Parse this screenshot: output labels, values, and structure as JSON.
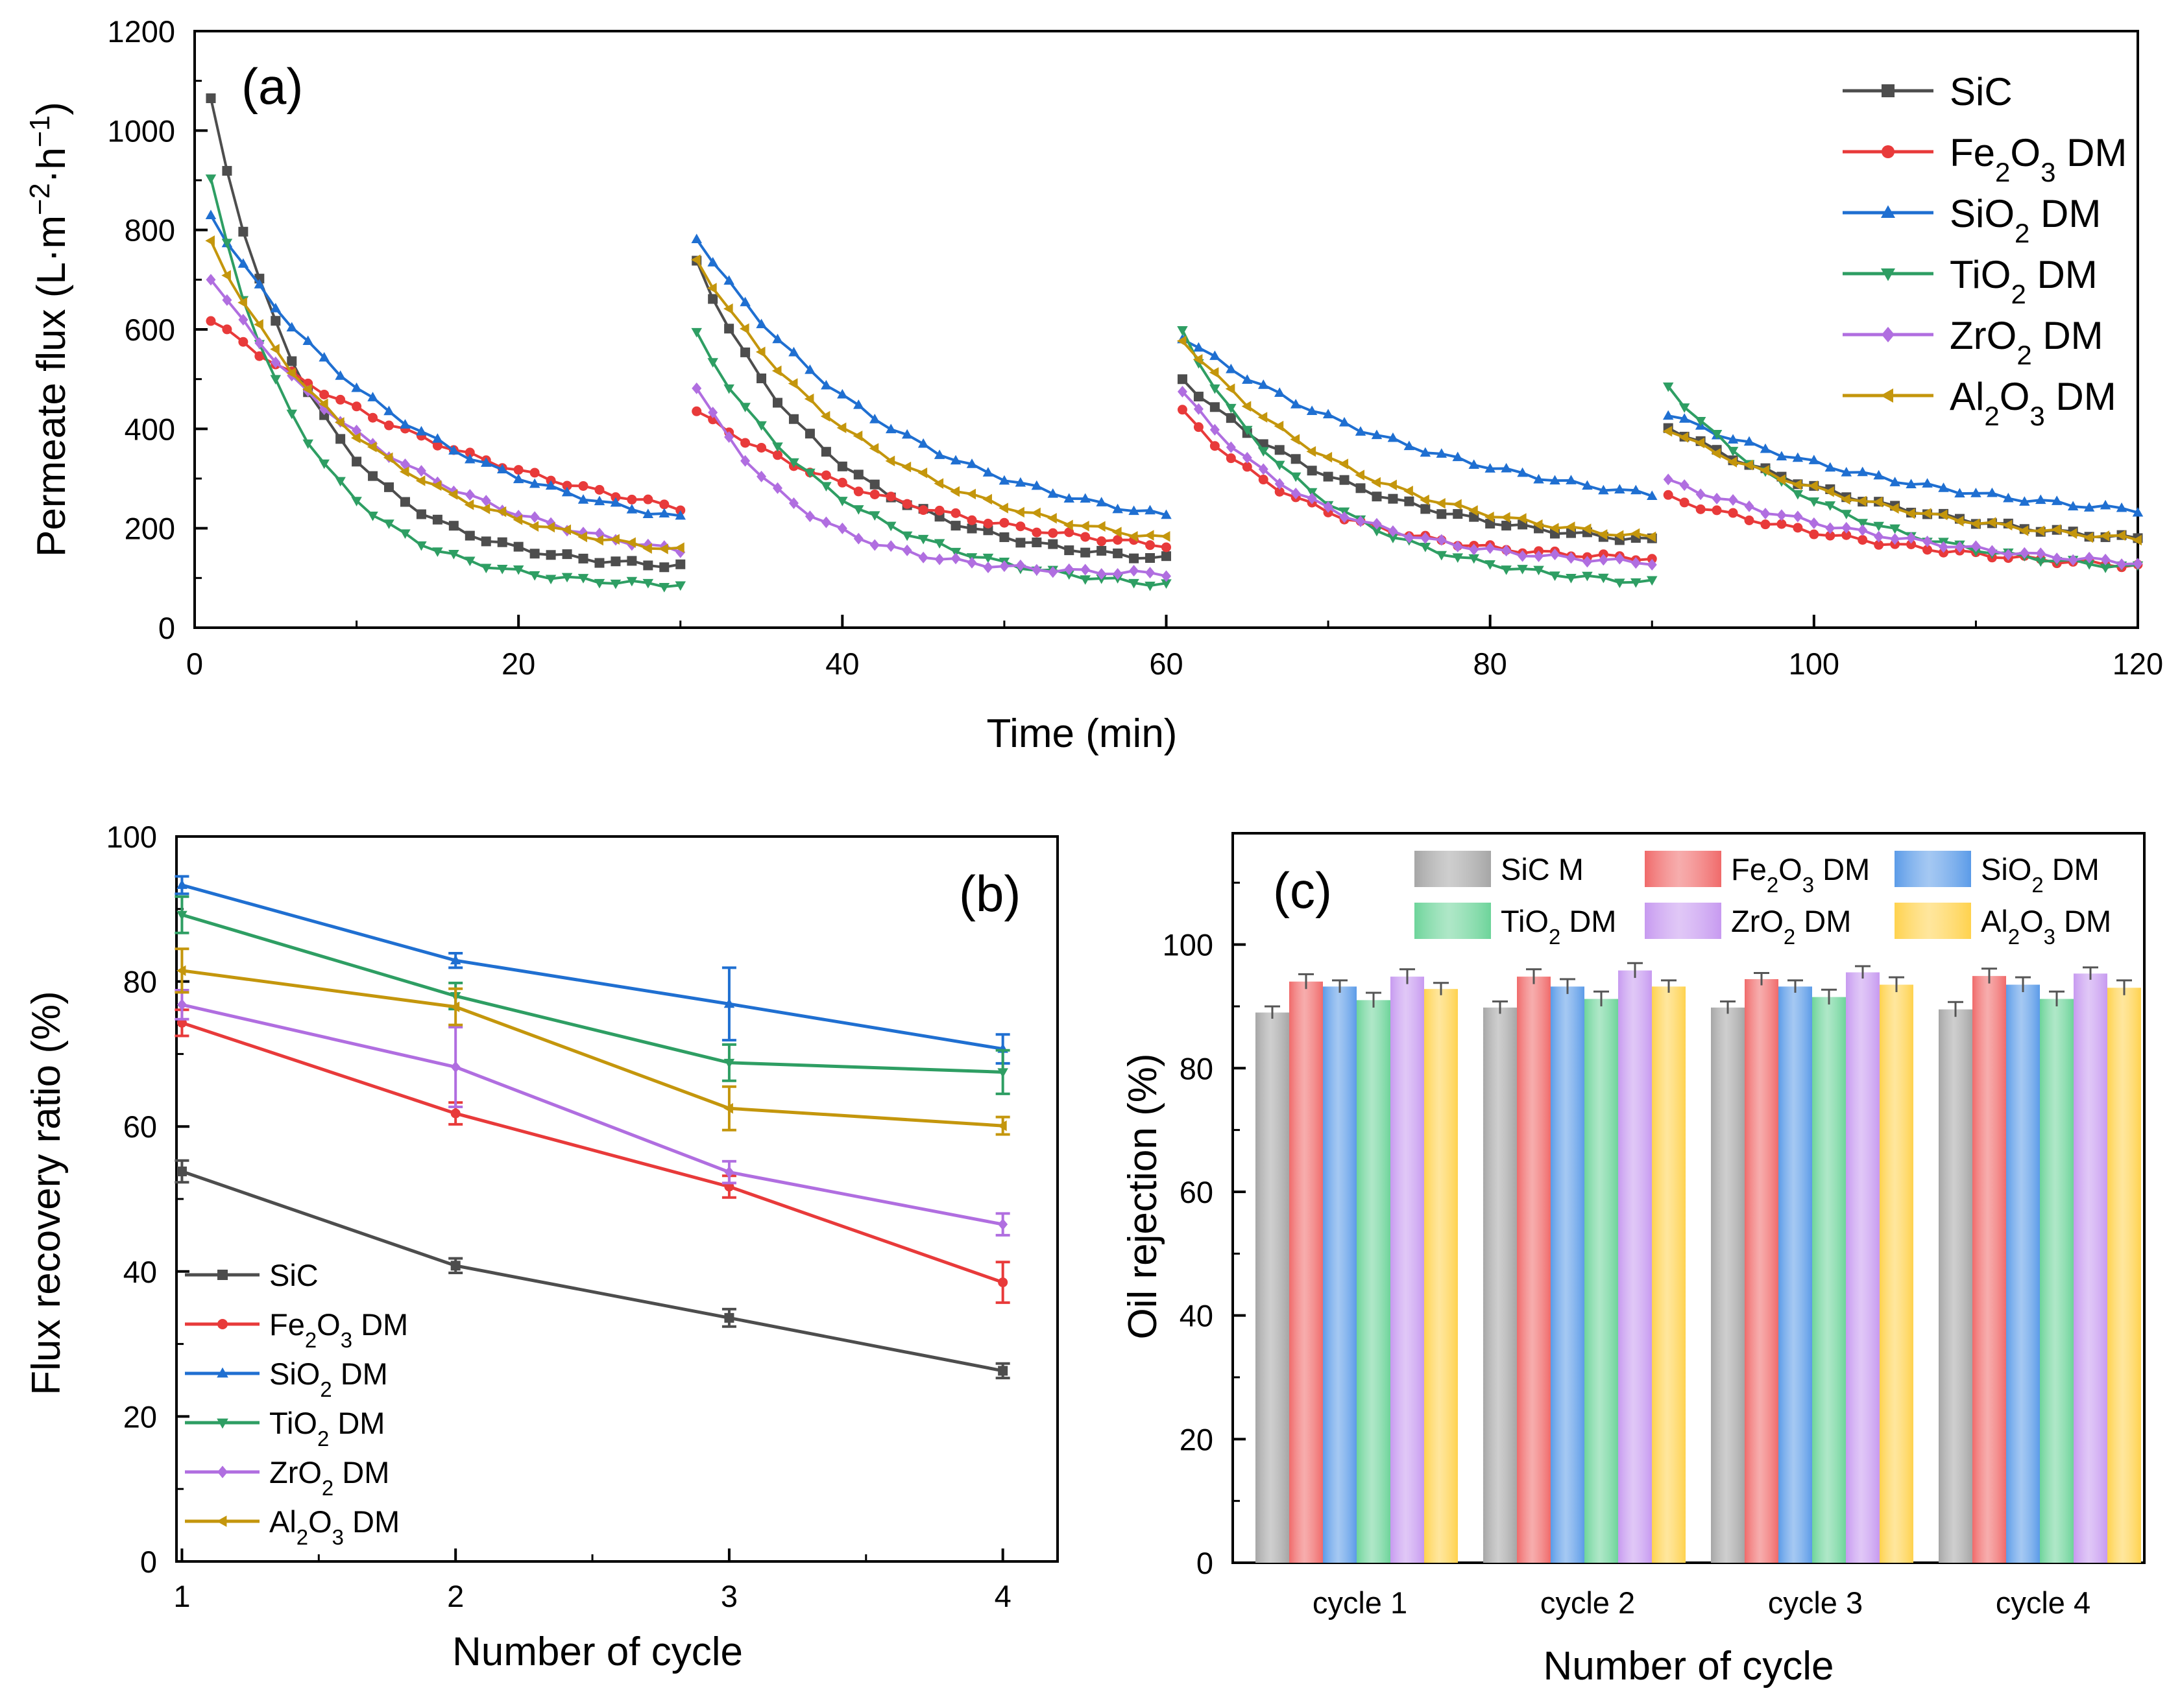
{
  "chart_data": [
    {
      "panel": "(a)",
      "type": "line",
      "xlabel": "Time (min)",
      "ylabel_parts": [
        "Permeate flux (L·m",
        "−2",
        "·h",
        "−1",
        ")"
      ],
      "xlim": [
        0,
        120
      ],
      "ylim": [
        0,
        1200
      ],
      "xticks": [
        "0",
        "20",
        "40",
        "60",
        "80",
        "100",
        "120"
      ],
      "yticks": [
        "0",
        "200",
        "400",
        "600",
        "800",
        "1000",
        "1200"
      ],
      "legend_position": "top-right",
      "grid": false,
      "segments": [
        [
          1,
          30
        ],
        [
          31,
          60
        ],
        [
          61,
          90
        ],
        [
          91,
          120
        ]
      ],
      "series": [
        {
          "name": "SiC",
          "label": [
            "SiC"
          ],
          "color": "#4d4d4d",
          "marker": "square",
          "curves": [
            [
              1060,
              45,
              0.16,
              115
            ],
            [
              735,
              10,
              0.12,
              120
            ],
            [
              500,
              25,
              0.09,
              150
            ],
            [
              405,
              20,
              0.07,
              145
            ]
          ]
        },
        {
          "name": "Fe2O3 DM",
          "label": [
            "Fe",
            "2",
            "O",
            "3",
            " DM"
          ],
          "color": "#e83a3a",
          "marker": "circle",
          "curves": [
            [
              620,
              12,
              0.05,
              125
            ],
            [
              435,
              12,
              0.07,
              125
            ],
            [
              435,
              20,
              0.12,
              130
            ],
            [
              262,
              12,
              0.06,
              95
            ]
          ]
        },
        {
          "name": "SiO2 DM",
          "label": [
            "SiO",
            "2",
            " DM"
          ],
          "color": "#1f6fd1",
          "marker": "triangle-up",
          "curves": [
            [
              830,
              5,
              0.08,
              155
            ],
            [
              785,
              10,
              0.08,
              165
            ],
            [
              585,
              10,
              0.06,
              200
            ],
            [
              430,
              20,
              0.06,
              195
            ]
          ]
        },
        {
          "name": "TiO2 DM",
          "label": [
            "TiO",
            "2",
            " DM"
          ],
          "color": "#2e9e63",
          "marker": "triangle-down",
          "curves": [
            [
              900,
              40,
              0.17,
              80
            ],
            [
              590,
              40,
              0.11,
              65
            ],
            [
              595,
              10,
              0.12,
              75
            ],
            [
              485,
              15,
              0.1,
              100
            ]
          ]
        },
        {
          "name": "ZrO2 DM",
          "label": [
            "ZrO",
            "2",
            " DM"
          ],
          "color": "#b06ee0",
          "marker": "diamond",
          "curves": [
            [
              705,
              5,
              0.08,
              95
            ],
            [
              485,
              10,
              0.16,
              105
            ],
            [
              475,
              10,
              0.12,
              120
            ],
            [
              295,
              10,
              0.06,
              95
            ]
          ]
        },
        {
          "name": "Al2O3 DM",
          "label": [
            "Al",
            "2",
            "O",
            "3",
            " DM"
          ],
          "color": "#c4960c",
          "marker": "triangle-left",
          "curves": [
            [
              775,
              10,
              0.1,
              120
            ],
            [
              740,
              10,
              0.09,
              135
            ],
            [
              580,
              10,
              0.09,
              150
            ],
            [
              400,
              10,
              0.07,
              145
            ]
          ]
        }
      ]
    },
    {
      "panel": "(b)",
      "type": "line",
      "xlabel": "Number of cycle",
      "ylabel": "Flux recovery ratio (%)",
      "xlim": [
        0.98,
        4.2
      ],
      "ylim": [
        0,
        100
      ],
      "x": [
        1,
        2,
        3,
        4
      ],
      "xticks": [
        "1",
        "2",
        "3",
        "4"
      ],
      "yticks": [
        "0",
        "20",
        "40",
        "60",
        "80",
        "100"
      ],
      "legend_position": "bottom-left",
      "grid": false,
      "series": [
        {
          "name": "SiC",
          "label": [
            "SiC"
          ],
          "color": "#4d4d4d",
          "marker": "square",
          "values": [
            53.8,
            40.8,
            33.6,
            26.3
          ],
          "errors": [
            1.5,
            1.0,
            1.2,
            1.0
          ]
        },
        {
          "name": "Fe2O3 DM",
          "label": [
            "Fe",
            "2",
            "O",
            "3",
            " DM"
          ],
          "color": "#e83a3a",
          "marker": "circle",
          "values": [
            74.3,
            61.8,
            51.7,
            38.5
          ],
          "errors": [
            1.8,
            1.5,
            1.5,
            2.8
          ]
        },
        {
          "name": "SiO2 DM",
          "label": [
            "SiO",
            "2",
            " DM"
          ],
          "color": "#1f6fd1",
          "marker": "triangle-up",
          "values": [
            93.3,
            82.9,
            76.9,
            70.7
          ],
          "errors": [
            1.2,
            1.0,
            5.0,
            2.0
          ]
        },
        {
          "name": "TiO2 DM",
          "label": [
            "TiO",
            "2",
            " DM"
          ],
          "color": "#2e9e63",
          "marker": "triangle-down",
          "values": [
            89.2,
            78.0,
            68.8,
            67.5
          ],
          "errors": [
            2.5,
            1.8,
            2.5,
            3.0
          ]
        },
        {
          "name": "ZrO2 DM",
          "label": [
            "ZrO",
            "2",
            " DM"
          ],
          "color": "#b06ee0",
          "marker": "diamond",
          "values": [
            76.8,
            68.2,
            53.7,
            46.5
          ],
          "errors": [
            2.0,
            5.5,
            1.5,
            1.5
          ]
        },
        {
          "name": "Al2O3 DM",
          "label": [
            "Al",
            "2",
            "O",
            "3",
            " DM"
          ],
          "color": "#c4960c",
          "marker": "triangle-left",
          "values": [
            81.5,
            76.5,
            62.5,
            60.1
          ],
          "errors": [
            3.0,
            2.5,
            3.0,
            1.2
          ]
        }
      ]
    },
    {
      "panel": "(c)",
      "type": "bar",
      "xlabel": "Number of cycle",
      "ylabel": "Oil rejection (%)",
      "ylim": [
        0,
        118
      ],
      "categories": [
        "cycle 1",
        "cycle 2",
        "cycle 3",
        "cycle 4"
      ],
      "yticks": [
        "0",
        "20",
        "40",
        "60",
        "80",
        "100"
      ],
      "legend_position": "top",
      "grid": false,
      "series": [
        {
          "name": "SiC M",
          "label": [
            "SiC M"
          ],
          "color": "#a6a6a6",
          "values": [
            89.0,
            89.8,
            89.8,
            89.5
          ],
          "errors": [
            1.0,
            1.0,
            1.0,
            1.2
          ]
        },
        {
          "name": "Fe2O3 DM",
          "label": [
            "Fe",
            "2",
            "O",
            "3",
            " DM"
          ],
          "color": "#f06a6a",
          "values": [
            94.0,
            94.8,
            94.4,
            94.9
          ],
          "errors": [
            1.2,
            1.2,
            1.0,
            1.2
          ]
        },
        {
          "name": "SiO2 DM",
          "label": [
            "SiO",
            "2",
            " DM"
          ],
          "color": "#5b9be8",
          "values": [
            93.2,
            93.2,
            93.2,
            93.5
          ],
          "errors": [
            1.0,
            1.2,
            1.0,
            1.2
          ]
        },
        {
          "name": "TiO2 DM",
          "label": [
            "TiO",
            "2",
            " DM"
          ],
          "color": "#6dd49a",
          "values": [
            91.0,
            91.2,
            91.5,
            91.2
          ],
          "errors": [
            1.2,
            1.2,
            1.2,
            1.2
          ]
        },
        {
          "name": "ZrO2 DM",
          "label": [
            "ZrO",
            "2",
            " DM"
          ],
          "color": "#c79af0",
          "values": [
            94.8,
            95.8,
            95.5,
            95.3
          ],
          "errors": [
            1.2,
            1.2,
            1.0,
            1.0
          ]
        },
        {
          "name": "Al2O3 DM",
          "label": [
            "Al",
            "2",
            "O",
            "3",
            " DM"
          ],
          "color": "#ffd24d",
          "values": [
            92.8,
            93.2,
            93.5,
            93.0
          ],
          "errors": [
            1.0,
            1.0,
            1.2,
            1.2
          ]
        }
      ]
    }
  ]
}
